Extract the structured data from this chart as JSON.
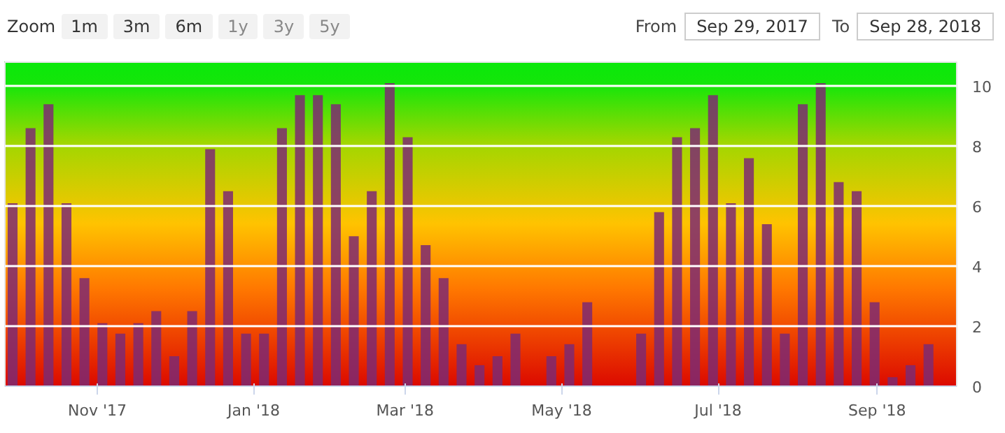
{
  "chart_data": {
    "type": "bar",
    "x": [
      "2017-09-29",
      "2017-10-06",
      "2017-10-13",
      "2017-10-20",
      "2017-10-27",
      "2017-11-03",
      "2017-11-10",
      "2017-11-17",
      "2017-11-24",
      "2017-12-01",
      "2017-12-08",
      "2017-12-15",
      "2017-12-22",
      "2017-12-29",
      "2018-01-05",
      "2018-01-12",
      "2018-01-19",
      "2018-01-26",
      "2018-02-02",
      "2018-02-09",
      "2018-02-16",
      "2018-02-23",
      "2018-03-02",
      "2018-03-09",
      "2018-03-16",
      "2018-03-23",
      "2018-03-30",
      "2018-04-06",
      "2018-04-13",
      "2018-04-20",
      "2018-04-27",
      "2018-05-04",
      "2018-05-11",
      "2018-05-18",
      "2018-05-25",
      "2018-06-01",
      "2018-06-08",
      "2018-06-15",
      "2018-06-22",
      "2018-06-29",
      "2018-07-06",
      "2018-07-13",
      "2018-07-20",
      "2018-07-27",
      "2018-08-03",
      "2018-08-10",
      "2018-08-17",
      "2018-08-24",
      "2018-08-31",
      "2018-09-07",
      "2018-09-14",
      "2018-09-21"
    ],
    "series": [
      {
        "color": "#7d2a72",
        "values": [
          6.1,
          8.6,
          9.4,
          6.1,
          3.6,
          2.1,
          1.75,
          2.1,
          2.5,
          1.0,
          2.5,
          7.9,
          6.5,
          1.75,
          1.75,
          8.6,
          9.7,
          9.7,
          9.4,
          5.0,
          6.5,
          10.1,
          8.3,
          4.7,
          3.6,
          1.4,
          0.7,
          1.0,
          1.75,
          null,
          1.0,
          1.4,
          2.8,
          null,
          null,
          1.75,
          5.8,
          8.3,
          8.6,
          9.7,
          6.1,
          7.6,
          5.4,
          1.75,
          9.4,
          10.1,
          6.8,
          6.5,
          2.8,
          0.3,
          0.7,
          1.4
        ]
      }
    ],
    "xlim": [
      "2017-09-26",
      "2018-10-02"
    ],
    "xticks": [
      {
        "value": "2017-11-01",
        "label": "Nov '17"
      },
      {
        "value": "2018-01-01",
        "label": "Jan '18"
      },
      {
        "value": "2018-03-01",
        "label": "Mar '18"
      },
      {
        "value": "2018-05-01",
        "label": "May '18"
      },
      {
        "value": "2018-07-01",
        "label": "Jul '18"
      },
      {
        "value": "2018-09-01",
        "label": "Sep '18"
      }
    ],
    "ylim": [
      0,
      10.8
    ],
    "yticks": [
      0,
      2,
      4,
      6,
      8,
      10
    ],
    "grid": "y",
    "annotations": [
      "Zoom",
      "1m",
      "3m",
      "6m",
      "1y",
      "3y",
      "5y",
      "From",
      "Sep 29, 2017",
      "To",
      "Sep 28, 2018"
    ]
  }
}
